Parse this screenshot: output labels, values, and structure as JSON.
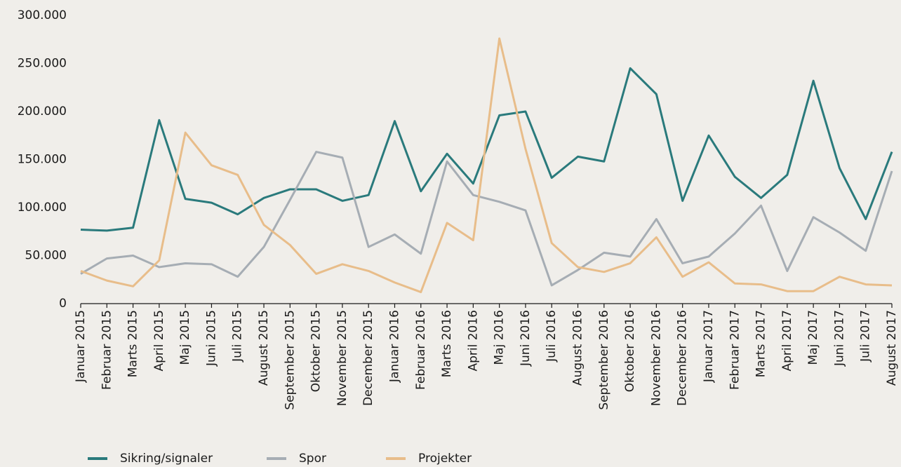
{
  "chart_data": {
    "type": "line",
    "categories": [
      "Januar 2015",
      "Februar 2015",
      "Marts 2015",
      "April 2015",
      "Maj 2015",
      "Juni 2015",
      "Juli 2015",
      "August 2015",
      "September 2015",
      "Oktober 2015",
      "November 2015",
      "December 2015",
      "Januar 2016",
      "Februar 2016",
      "Marts 2016",
      "April 2016",
      "Maj 2016",
      "Juni 2016",
      "Juli 2016",
      "August 2016",
      "September 2016",
      "Oktober 2016",
      "November 2016",
      "December 2016",
      "Januar 2017",
      "Februar 2017",
      "Marts 2017",
      "April 2017",
      "Maj 2017",
      "Juni 2017",
      "Juli 2017",
      "August 2017"
    ],
    "series": [
      {
        "name": "Sikring/signaler",
        "color": "#2a7a7c",
        "values": [
          77000,
          76000,
          79000,
          191000,
          109000,
          105000,
          93000,
          110000,
          119000,
          119000,
          107000,
          113000,
          190000,
          117000,
          156000,
          125000,
          196000,
          200000,
          131000,
          153000,
          148000,
          245000,
          218000,
          107000,
          175000,
          132000,
          110000,
          134000,
          232000,
          141000,
          88000,
          158000
        ]
      },
      {
        "name": "Spor",
        "color": "#a6adb4",
        "values": [
          31000,
          47000,
          50000,
          38000,
          42000,
          41000,
          28000,
          59000,
          108000,
          158000,
          152000,
          59000,
          72000,
          52000,
          148000,
          113000,
          106000,
          97000,
          19000,
          35000,
          53000,
          49000,
          88000,
          42000,
          49000,
          73000,
          102000,
          34000,
          90000,
          74000,
          55000,
          138000
        ]
      },
      {
        "name": "Projekter",
        "color": "#e8bd8a",
        "values": [
          34000,
          24000,
          18000,
          45000,
          178000,
          144000,
          134000,
          82000,
          61000,
          31000,
          41000,
          34000,
          22000,
          12000,
          84000,
          66000,
          276000,
          161000,
          63000,
          38000,
          33000,
          42000,
          69000,
          28000,
          43000,
          21000,
          20000,
          13000,
          13000,
          28000,
          20000,
          19000
        ]
      }
    ],
    "ylim": [
      0,
      300000
    ],
    "yticks": [
      0,
      {
        "value": 50000,
        "label": "50.000"
      },
      {
        "value": 100000,
        "label": "100.000"
      },
      {
        "value": 150000,
        "label": "150.000"
      },
      {
        "value": 200000,
        "label": "200.000"
      },
      {
        "value": 250000,
        "label": "250.000"
      },
      {
        "value": 300000,
        "label": "300.000"
      }
    ]
  }
}
